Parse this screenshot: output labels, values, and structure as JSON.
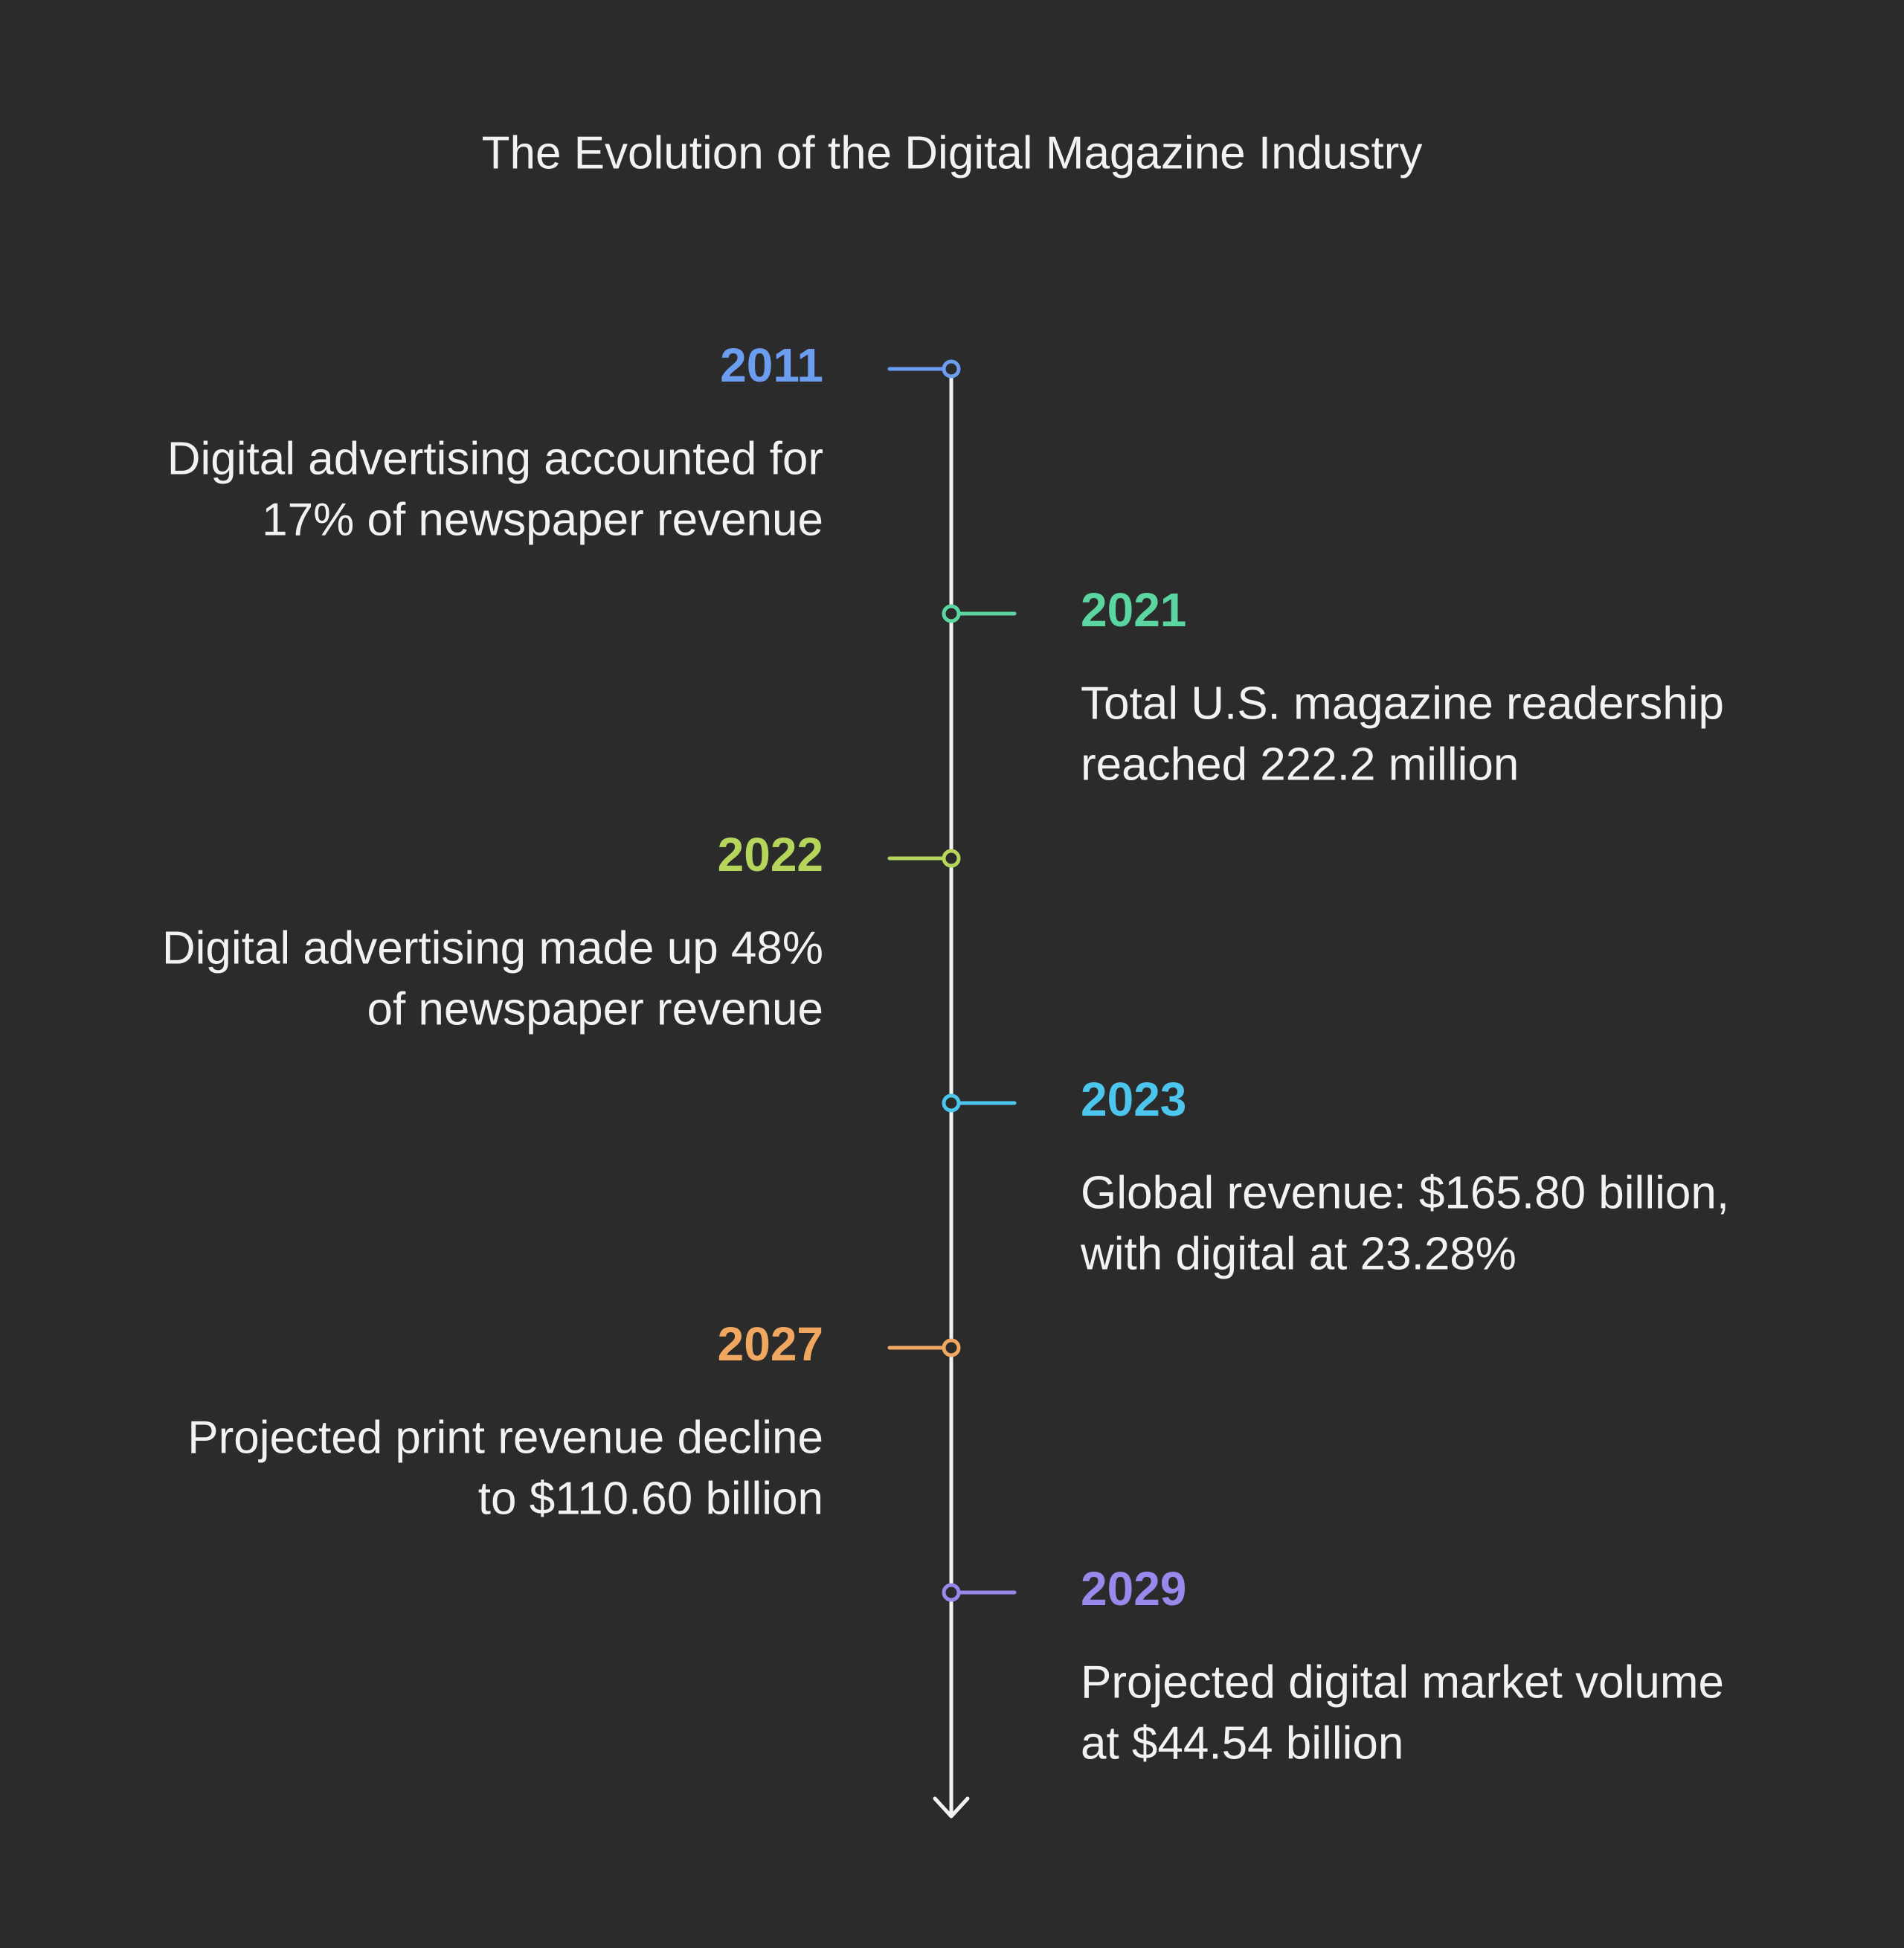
{
  "title": "The Evolution of the Digital Magazine Industry",
  "events": [
    {
      "year": "2011",
      "color": "#6b9ef0",
      "lines": [
        "Digital advertising accounted for",
        "17% of newspaper revenue"
      ]
    },
    {
      "year": "2021",
      "color": "#5cd6a0",
      "lines": [
        "Total U.S. magazine readership",
        "reached 222.2 million"
      ]
    },
    {
      "year": "2022",
      "color": "#b5d65a",
      "lines": [
        "Digital advertising made up 48%",
        "of newspaper revenue"
      ]
    },
    {
      "year": "2023",
      "color": "#4cc6ec",
      "lines": [
        "Global revenue: $165.80 billion,",
        "with digital at 23.28%"
      ]
    },
    {
      "year": "2027",
      "color": "#f0a860",
      "lines": [
        "Projected print revenue decline",
        "to $110.60 billion"
      ]
    },
    {
      "year": "2029",
      "color": "#9a88ec",
      "lines": [
        "Projected digital market volume",
        "at $44.54 billion"
      ]
    }
  ]
}
